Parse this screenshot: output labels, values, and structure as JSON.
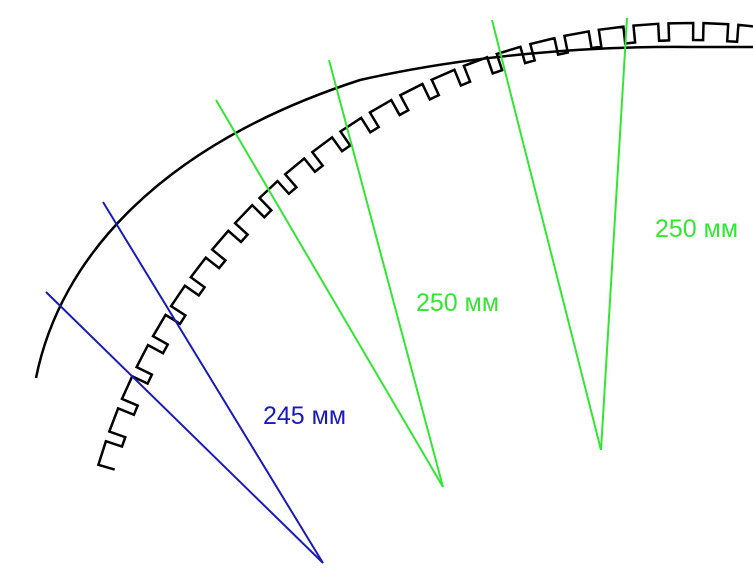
{
  "diagram": {
    "labels": {
      "blue": "245 мм",
      "green_mid": "250 мм",
      "green_right": "250 мм"
    },
    "colors": {
      "outline": "#000000",
      "blue": "#1a1ab8",
      "green": "#33e633",
      "background": "#ffffff"
    }
  }
}
